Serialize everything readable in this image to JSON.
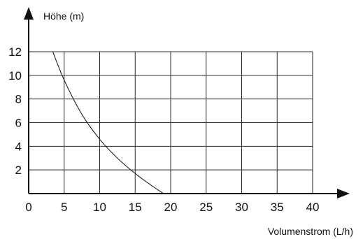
{
  "chart_data": {
    "type": "line",
    "xlabel": "Volumenstrom (L/h)",
    "ylabel": "Höhe (m)",
    "xlim": [
      0,
      40
    ],
    "ylim": [
      0,
      12
    ],
    "x_ticks": [
      0,
      5,
      10,
      15,
      20,
      25,
      30,
      35,
      40
    ],
    "y_ticks": [
      2,
      4,
      6,
      8,
      10,
      12
    ],
    "grid": true,
    "series": [
      {
        "x": [
          3.4,
          5,
          7.5,
          10,
          12.5,
          15,
          17.5,
          19
        ],
        "y": [
          12,
          9.6,
          6.7,
          4.6,
          3.0,
          1.7,
          0.6,
          0
        ],
        "color": "#222222"
      }
    ]
  }
}
